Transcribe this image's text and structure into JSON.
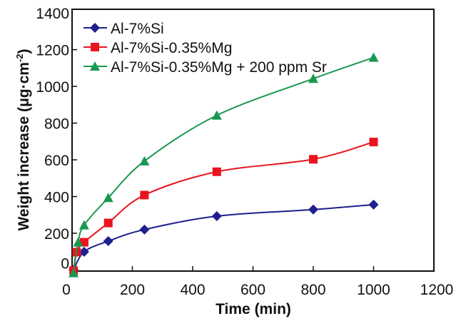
{
  "chart_data": {
    "type": "line",
    "title": "",
    "xlabel": "Time (min)",
    "ylabel": "Weight increase (μg·cm",
    "ylabel_sup": "-2",
    "ylabel_close": ")",
    "xlim": [
      0,
      1200
    ],
    "ylim": [
      -6,
      1420
    ],
    "xticks": [
      0,
      200,
      400,
      600,
      800,
      1000,
      1200
    ],
    "yticks": [
      0,
      200,
      400,
      600,
      800,
      1000,
      1200,
      1400
    ],
    "grid": false,
    "legend_position": "top-left",
    "series": [
      {
        "name": "Al-7%Si",
        "color": "#1f1f8f",
        "marker": "diamond",
        "x": [
          5,
          40,
          120,
          240,
          480,
          800,
          1000
        ],
        "y": [
          0,
          99,
          157,
          220,
          293,
          329,
          356
        ]
      },
      {
        "name": "Al-7%Si-0.35%Mg",
        "color": "#e8141e",
        "marker": "square",
        "x": [
          5,
          15,
          40,
          120,
          240,
          480,
          800,
          1000
        ],
        "y": [
          -3,
          97,
          151,
          256,
          408,
          535,
          603,
          697
        ]
      },
      {
        "name": "Al-7%Si-0.35%Mg + 200 ppm Sr",
        "color": "#1a9850",
        "marker": "triangle",
        "x": [
          5,
          20,
          40,
          120,
          240,
          480,
          800,
          1000
        ],
        "y": [
          -16,
          151,
          244,
          393,
          593,
          842,
          1042,
          1157
        ]
      }
    ]
  }
}
